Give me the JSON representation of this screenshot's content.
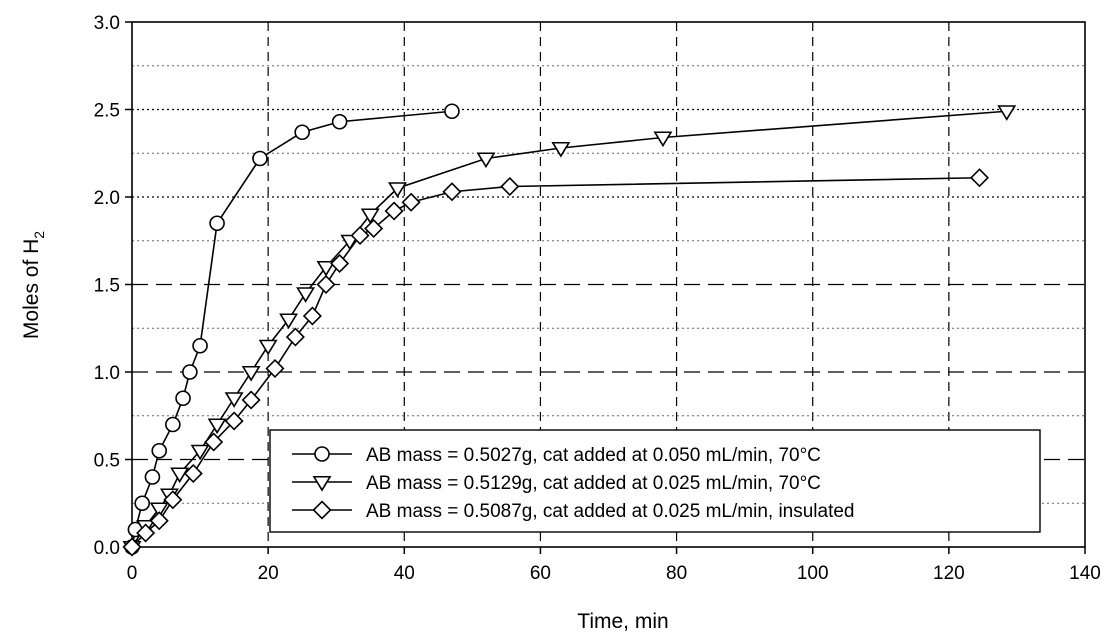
{
  "chart_data": {
    "type": "line",
    "xlabel": "Time, min",
    "ylabel": {
      "main": "Moles of H",
      "sub": "2"
    },
    "xlim": [
      0,
      140
    ],
    "ylim": [
      0,
      3.0
    ],
    "x_ticks": [
      "0",
      "20",
      "40",
      "60",
      "80",
      "100",
      "120",
      "140"
    ],
    "y_ticks": [
      "0.0",
      "0.5",
      "1.0",
      "1.5",
      "2.0",
      "2.5",
      "3.0"
    ],
    "grid": {
      "x": "dashed",
      "y_major": "dashed",
      "y_minor": "dotted"
    },
    "legend_position": "bottom-right",
    "series": [
      {
        "name": "AB mass = 0.5027g, cat added at 0.050 mL/min, 70°C",
        "marker": "circle",
        "x": [
          0,
          0.5,
          1.5,
          3,
          4,
          6,
          7.5,
          8.5,
          10,
          12.5,
          18.8,
          25,
          30.5,
          47
        ],
        "y": [
          0.0,
          0.1,
          0.25,
          0.4,
          0.55,
          0.7,
          0.85,
          1.0,
          1.15,
          1.85,
          2.22,
          2.37,
          2.43,
          2.49
        ]
      },
      {
        "name": "AB mass = 0.5129g, cat added at 0.025 mL/min, 70°C",
        "marker": "triangle-down",
        "x": [
          0,
          2,
          4,
          5.5,
          7,
          10,
          12.5,
          15,
          17.5,
          20,
          23,
          25.5,
          28.5,
          32,
          35,
          39,
          52,
          63,
          78,
          128.5
        ],
        "y": [
          0.0,
          0.12,
          0.22,
          0.3,
          0.42,
          0.55,
          0.7,
          0.85,
          1.0,
          1.15,
          1.3,
          1.45,
          1.6,
          1.75,
          1.9,
          2.05,
          2.22,
          2.28,
          2.34,
          2.49
        ]
      },
      {
        "name": "AB mass = 0.5087g, cat added at 0.025 mL/min, insulated",
        "marker": "diamond",
        "x": [
          0,
          2,
          4,
          6,
          9,
          12,
          15,
          17.5,
          21,
          24,
          26.5,
          28.5,
          30.5,
          33.5,
          35.5,
          38.5,
          41,
          47,
          55.5,
          124.5
        ],
        "y": [
          0.0,
          0.08,
          0.15,
          0.27,
          0.42,
          0.6,
          0.72,
          0.84,
          1.02,
          1.2,
          1.32,
          1.5,
          1.62,
          1.78,
          1.82,
          1.92,
          1.97,
          2.03,
          2.06,
          2.11
        ]
      }
    ]
  }
}
